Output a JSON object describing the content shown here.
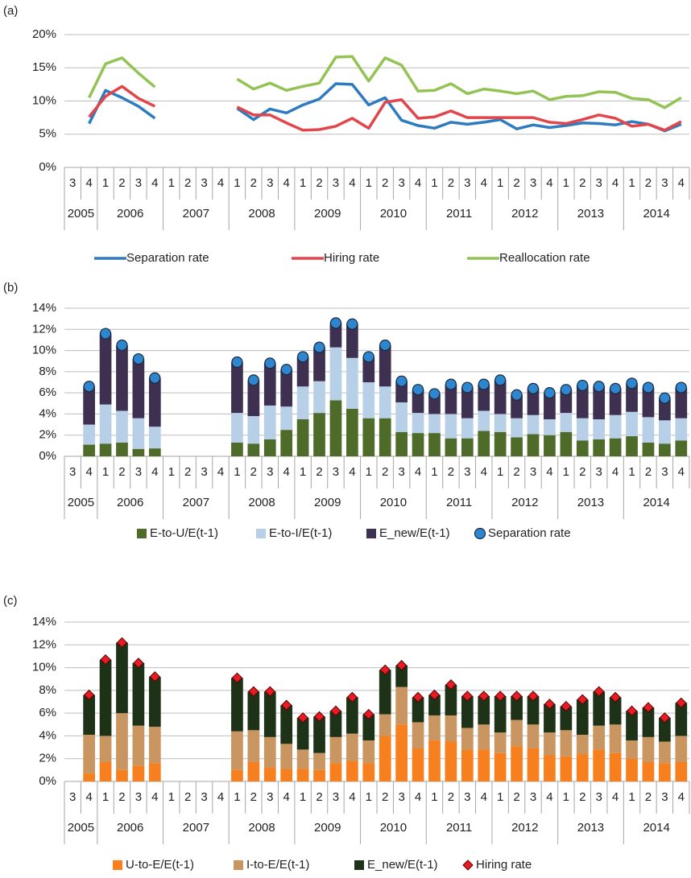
{
  "chart_data": [
    {
      "label": "(a)",
      "type": "line",
      "categories": [
        "3",
        "4",
        "1",
        "2",
        "3",
        "4",
        "1",
        "2",
        "3",
        "4",
        "1",
        "2",
        "3",
        "4",
        "1",
        "2",
        "3",
        "4",
        "1",
        "2",
        "3",
        "4",
        "1",
        "2",
        "3",
        "4",
        "1",
        "2",
        "3",
        "4",
        "1",
        "2",
        "3",
        "4",
        "1",
        "2",
        "3",
        "4"
      ],
      "years": [
        "2005",
        "2006",
        "2007",
        "2008",
        "2009",
        "2010",
        "2011",
        "2012",
        "2013",
        "2014"
      ],
      "ylim": [
        0,
        20
      ],
      "yticks": [
        {
          "value": 0,
          "label": "0%"
        },
        {
          "value": 5,
          "label": "5%"
        },
        {
          "value": 10,
          "label": "10%"
        },
        {
          "value": 15,
          "label": "15%"
        },
        {
          "value": 20,
          "label": "20%"
        }
      ],
      "grid": true,
      "series": [
        {
          "name": "Separation rate",
          "color": "#2e7bbf",
          "values": [
            null,
            6.6,
            11.6,
            10.5,
            9.2,
            7.4,
            null,
            null,
            null,
            null,
            8.9,
            7.2,
            8.8,
            8.2,
            9.4,
            10.3,
            12.6,
            12.5,
            9.4,
            10.5,
            7.1,
            6.3,
            5.9,
            6.8,
            6.5,
            6.8,
            7.2,
            5.8,
            6.4,
            6.0,
            6.3,
            6.7,
            6.6,
            6.4,
            6.9,
            6.5,
            5.5,
            6.5
          ]
        },
        {
          "name": "Hiring rate",
          "color": "#e0464b",
          "values": [
            null,
            7.6,
            10.7,
            12.2,
            10.4,
            9.2,
            null,
            null,
            null,
            null,
            9.1,
            7.9,
            7.9,
            6.7,
            5.6,
            5.7,
            6.2,
            7.4,
            5.9,
            9.8,
            10.2,
            7.4,
            7.6,
            8.5,
            7.5,
            7.5,
            7.5,
            7.5,
            7.5,
            6.8,
            6.6,
            7.2,
            7.9,
            7.4,
            6.2,
            6.5,
            5.6,
            6.9
          ]
        },
        {
          "name": "Reallocation rate",
          "color": "#92c353",
          "values": [
            null,
            10.5,
            15.6,
            16.5,
            14.2,
            12.1,
            null,
            null,
            null,
            null,
            13.3,
            11.8,
            12.7,
            11.6,
            12.2,
            12.7,
            16.6,
            16.7,
            13.0,
            16.5,
            15.4,
            11.5,
            11.6,
            12.6,
            11.1,
            11.8,
            11.5,
            11.1,
            11.5,
            10.2,
            10.7,
            10.8,
            11.4,
            11.3,
            10.4,
            10.2,
            9.0,
            10.5
          ]
        }
      ]
    },
    {
      "label": "(b)",
      "type": "bar",
      "stacked": true,
      "categories": [
        "3",
        "4",
        "1",
        "2",
        "3",
        "4",
        "1",
        "2",
        "3",
        "4",
        "1",
        "2",
        "3",
        "4",
        "1",
        "2",
        "3",
        "4",
        "1",
        "2",
        "3",
        "4",
        "1",
        "2",
        "3",
        "4",
        "1",
        "2",
        "3",
        "4",
        "1",
        "2",
        "3",
        "4",
        "1",
        "2",
        "3",
        "4"
      ],
      "years": [
        "2005",
        "2006",
        "2007",
        "2008",
        "2009",
        "2010",
        "2011",
        "2012",
        "2013",
        "2014"
      ],
      "ylim": [
        0,
        14
      ],
      "yticks": [
        {
          "value": 0,
          "label": "0%"
        },
        {
          "value": 2,
          "label": "2%"
        },
        {
          "value": 4,
          "label": "4%"
        },
        {
          "value": 6,
          "label": "6%"
        },
        {
          "value": 8,
          "label": "8%"
        },
        {
          "value": 10,
          "label": "10%"
        },
        {
          "value": 12,
          "label": "12%"
        },
        {
          "value": 14,
          "label": "14%"
        }
      ],
      "grid": true,
      "series": [
        {
          "name": "E-to-U/E(t-1)",
          "color": "#4f6b2a",
          "values": [
            null,
            1.1,
            1.2,
            1.3,
            0.7,
            0.75,
            null,
            null,
            null,
            null,
            1.3,
            1.2,
            1.6,
            2.5,
            3.5,
            4.1,
            5.3,
            4.5,
            3.6,
            3.6,
            2.3,
            2.2,
            2.2,
            1.7,
            1.7,
            2.4,
            2.3,
            1.8,
            2.1,
            2.0,
            2.3,
            1.5,
            1.6,
            1.7,
            1.9,
            1.3,
            1.2,
            1.5
          ]
        },
        {
          "name": "E-to-I/E(t-1)",
          "color": "#b8cfe8",
          "values": [
            null,
            1.9,
            3.7,
            3.0,
            2.9,
            2.05,
            null,
            null,
            null,
            null,
            2.8,
            2.6,
            3.2,
            2.2,
            3.1,
            3.0,
            5.0,
            4.8,
            3.4,
            3.0,
            2.8,
            1.9,
            1.8,
            2.3,
            1.9,
            1.9,
            1.7,
            1.8,
            1.8,
            1.5,
            1.8,
            2.1,
            1.9,
            2.2,
            2.3,
            2.4,
            2.2,
            2.1
          ]
        },
        {
          "name": "E_new/E(t-1)",
          "color": "#3e3050",
          "values": [
            null,
            3.6,
            6.7,
            6.2,
            5.6,
            4.6,
            null,
            null,
            null,
            null,
            4.8,
            3.4,
            4.0,
            3.5,
            2.8,
            3.2,
            2.3,
            3.2,
            2.4,
            3.9,
            2.0,
            2.2,
            1.9,
            2.8,
            2.9,
            2.5,
            3.2,
            2.2,
            2.5,
            2.5,
            2.2,
            3.1,
            3.1,
            2.5,
            2.7,
            2.8,
            2.1,
            2.9
          ]
        },
        {
          "name": "Separation rate",
          "type": "scatter",
          "marker": "circle",
          "color": "#2e86d0",
          "values": [
            null,
            6.6,
            11.6,
            10.5,
            9.2,
            7.4,
            null,
            null,
            null,
            null,
            8.9,
            7.2,
            8.8,
            8.2,
            9.4,
            10.3,
            12.6,
            12.5,
            9.4,
            10.5,
            7.1,
            6.3,
            5.9,
            6.8,
            6.5,
            6.8,
            7.2,
            5.8,
            6.4,
            6.0,
            6.3,
            6.7,
            6.6,
            6.4,
            6.9,
            6.5,
            5.5,
            6.5
          ]
        }
      ]
    },
    {
      "label": "(c)",
      "type": "bar",
      "stacked": true,
      "categories": [
        "3",
        "4",
        "1",
        "2",
        "3",
        "4",
        "1",
        "2",
        "3",
        "4",
        "1",
        "2",
        "3",
        "4",
        "1",
        "2",
        "3",
        "4",
        "1",
        "2",
        "3",
        "4",
        "1",
        "2",
        "3",
        "4",
        "1",
        "2",
        "3",
        "4",
        "1",
        "2",
        "3",
        "4",
        "1",
        "2",
        "3",
        "4"
      ],
      "years": [
        "2005",
        "2006",
        "2007",
        "2008",
        "2009",
        "2010",
        "2011",
        "2012",
        "2013",
        "2014"
      ],
      "ylim": [
        0,
        14
      ],
      "yticks": [
        {
          "value": 0,
          "label": "0%"
        },
        {
          "value": 2,
          "label": "2%"
        },
        {
          "value": 4,
          "label": "4%"
        },
        {
          "value": 6,
          "label": "6%"
        },
        {
          "value": 8,
          "label": "8%"
        },
        {
          "value": 10,
          "label": "10%"
        },
        {
          "value": 12,
          "label": "12%"
        },
        {
          "value": 14,
          "label": "14%"
        }
      ],
      "grid": true,
      "series": [
        {
          "name": "U-to-E/E(t-1)",
          "color": "#f77f1e",
          "values": [
            null,
            0.7,
            1.7,
            1.0,
            1.4,
            1.6,
            null,
            null,
            null,
            null,
            1.0,
            1.7,
            1.2,
            1.1,
            1.1,
            1.0,
            1.6,
            1.8,
            1.6,
            4.0,
            5.0,
            2.9,
            3.6,
            3.5,
            2.8,
            2.8,
            2.5,
            3.1,
            2.9,
            2.3,
            2.2,
            2.4,
            2.8,
            2.5,
            2.0,
            1.7,
            1.6,
            1.7
          ]
        },
        {
          "name": "I-to-E/E(t-1)",
          "color": "#c99560",
          "values": [
            null,
            3.4,
            2.3,
            5.0,
            3.5,
            3.2,
            null,
            null,
            null,
            null,
            3.4,
            2.8,
            2.7,
            2.2,
            1.7,
            1.5,
            2.3,
            2.4,
            2.0,
            1.9,
            3.3,
            2.3,
            2.2,
            2.3,
            1.9,
            2.2,
            1.8,
            2.3,
            2.1,
            2.0,
            2.3,
            1.7,
            2.1,
            2.5,
            1.6,
            2.2,
            1.9,
            2.3
          ]
        },
        {
          "name": "E_new/E(t-1)",
          "color": "#1e3217",
          "values": [
            null,
            3.5,
            6.7,
            6.2,
            5.5,
            4.4,
            null,
            null,
            null,
            null,
            4.7,
            3.4,
            4.0,
            3.4,
            2.8,
            3.2,
            2.3,
            3.2,
            2.3,
            3.9,
            1.9,
            2.2,
            1.8,
            2.7,
            2.8,
            2.5,
            3.2,
            2.1,
            2.5,
            2.5,
            2.1,
            3.1,
            3.0,
            2.4,
            2.6,
            2.6,
            2.1,
            2.9
          ]
        },
        {
          "name": "Hiring rate",
          "type": "scatter",
          "marker": "diamond",
          "color": "#e81c24",
          "values": [
            null,
            7.6,
            10.7,
            12.2,
            10.4,
            9.2,
            null,
            null,
            null,
            null,
            9.1,
            7.9,
            7.9,
            6.7,
            5.6,
            5.7,
            6.2,
            7.4,
            5.9,
            9.8,
            10.2,
            7.4,
            7.6,
            8.5,
            7.5,
            7.5,
            7.5,
            7.5,
            7.5,
            6.8,
            6.6,
            7.2,
            7.9,
            7.4,
            6.2,
            6.5,
            5.6,
            6.9
          ]
        }
      ]
    }
  ]
}
